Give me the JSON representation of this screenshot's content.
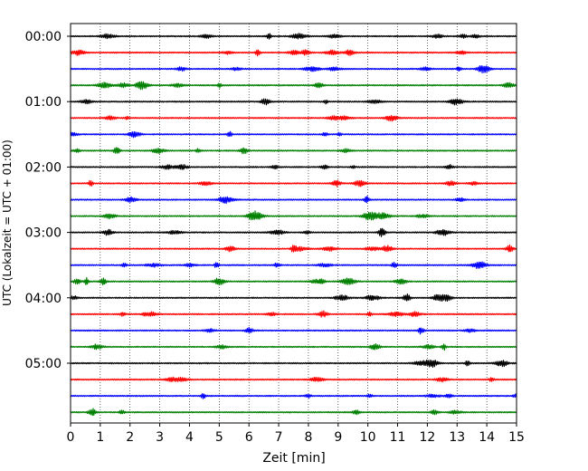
{
  "chart_data": {
    "type": "line",
    "title": "",
    "xlabel": "Zeit  [min]",
    "ylabel": "UTC (Lokalzeit = UTC + 01:00)",
    "xlim": [
      0,
      15
    ],
    "x_ticks": [
      "0",
      "1",
      "2",
      "3",
      "4",
      "5",
      "6",
      "7",
      "8",
      "9",
      "10",
      "11",
      "12",
      "13",
      "14",
      "15"
    ],
    "y_ticks": [
      "00:00",
      "01:00",
      "02:00",
      "03:00",
      "04:00",
      "05:00"
    ],
    "grid": "vertical-dotted",
    "trace_interval_min": 15,
    "trace_count": 24,
    "trace_colors": [
      "#000000",
      "#ff0000",
      "#0000ff",
      "#008000"
    ],
    "series": [
      {
        "start": "00:00"
      },
      {
        "start": "00:15"
      },
      {
        "start": "00:30"
      },
      {
        "start": "00:45"
      },
      {
        "start": "01:00"
      },
      {
        "start": "01:15"
      },
      {
        "start": "01:30"
      },
      {
        "start": "01:45"
      },
      {
        "start": "02:00"
      },
      {
        "start": "02:15"
      },
      {
        "start": "02:30"
      },
      {
        "start": "02:45"
      },
      {
        "start": "03:00"
      },
      {
        "start": "03:15"
      },
      {
        "start": "03:30"
      },
      {
        "start": "03:45"
      },
      {
        "start": "04:00"
      },
      {
        "start": "04:15"
      },
      {
        "start": "04:30"
      },
      {
        "start": "04:45"
      },
      {
        "start": "05:00"
      },
      {
        "start": "05:15"
      },
      {
        "start": "05:30"
      },
      {
        "start": "05:45"
      }
    ]
  }
}
